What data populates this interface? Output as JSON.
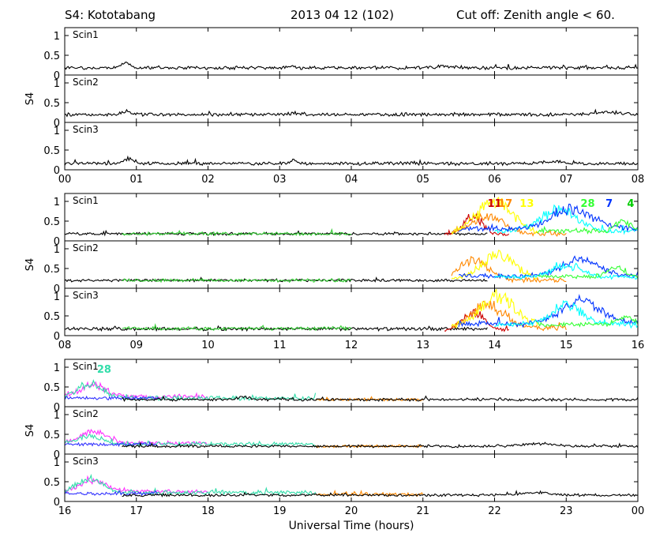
{
  "header": {
    "station": "S4: Kototabang",
    "date": "2013 04 12 (102)",
    "cutoff": "Cut off: Zenith angle < 60."
  },
  "chart_data": {
    "type": "line",
    "ylabel": "S4",
    "xlabel": "Universal Time (hours)",
    "ylim": [
      0,
      1.2
    ],
    "yticks": [
      {
        "v": 0,
        "t": "0"
      },
      {
        "v": 0.5,
        "t": "0.5"
      },
      {
        "v": 1,
        "t": "1"
      }
    ],
    "rows": [
      {
        "xlim": [
          0,
          8
        ],
        "xtick_labels": [
          "00",
          "01",
          "02",
          "03",
          "04",
          "05",
          "06",
          "07",
          "08"
        ],
        "panels": [
          {
            "label": "Scin1",
            "series": [
              {
                "color": "#000000",
                "level": 0.18,
                "noise": 0.05,
                "bumps": [
                  [
                    0.85,
                    0.1,
                    0.1
                  ],
                  [
                    3.15,
                    0.05,
                    0.06
                  ],
                  [
                    5.3,
                    0.04,
                    0.2
                  ]
                ]
              }
            ]
          },
          {
            "label": "Scin2",
            "series": [
              {
                "color": "#000000",
                "level": 0.2,
                "noise": 0.05,
                "bumps": [
                  [
                    0.85,
                    0.08,
                    0.1
                  ],
                  [
                    3.2,
                    0.04,
                    0.06
                  ],
                  [
                    7.6,
                    0.05,
                    0.3
                  ]
                ]
              }
            ]
          },
          {
            "label": "Scin3",
            "series": [
              {
                "color": "#000000",
                "level": 0.16,
                "noise": 0.05,
                "bumps": [
                  [
                    0.9,
                    0.12,
                    0.1
                  ],
                  [
                    3.2,
                    0.1,
                    0.06
                  ],
                  [
                    6.8,
                    0.04,
                    0.2
                  ]
                ]
              }
            ]
          }
        ]
      },
      {
        "xlim": [
          8,
          16
        ],
        "xtick_labels": [
          "08",
          "09",
          "10",
          "11",
          "12",
          "13",
          "14",
          "15",
          "16"
        ],
        "prn_labels": [
          {
            "text": "11",
            "color": "#cc0000",
            "x": 14.0
          },
          {
            "text": "17",
            "color": "#ff8800",
            "x": 14.15
          },
          {
            "text": "13",
            "color": "#ffff00",
            "x": 14.45
          },
          {
            "text": "28",
            "color": "#33ff33",
            "x": 15.3
          },
          {
            "text": "7",
            "color": "#0033ff",
            "x": 15.6
          },
          {
            "text": "4",
            "color": "#00cc00",
            "x": 15.9
          }
        ],
        "panels": [
          {
            "label": "Scin1",
            "series": [
              {
                "color": "#000000",
                "level": 0.18,
                "noise": 0.04,
                "range": [
                  8,
                  13.9
                ],
                "bumps": []
              },
              {
                "color": "#33cc33",
                "level": 0.18,
                "noise": 0.05,
                "range": [
                  8.8,
                  12.0
                ],
                "bumps": []
              },
              {
                "color": "#cc0000",
                "level": 0.15,
                "noise": 0.06,
                "range": [
                  13.3,
                  14.2
                ],
                "bumps": [
                  [
                    13.7,
                    0.45,
                    0.2
                  ]
                ]
              },
              {
                "color": "#ff8800",
                "level": 0.18,
                "noise": 0.06,
                "range": [
                  13.4,
                  15.0
                ],
                "bumps": [
                  [
                    13.9,
                    0.45,
                    0.3
                  ]
                ]
              },
              {
                "color": "#ffff00",
                "level": 0.2,
                "noise": 0.08,
                "range": [
                  13.4,
                  14.6
                ],
                "bumps": [
                  [
                    14.0,
                    0.8,
                    0.35
                  ]
                ]
              },
              {
                "color": "#00ffff",
                "level": 0.25,
                "noise": 0.08,
                "range": [
                  14.0,
                  16
                ],
                "bumps": [
                  [
                    14.9,
                    0.55,
                    0.35
                  ]
                ]
              },
              {
                "color": "#0033ff",
                "level": 0.3,
                "noise": 0.08,
                "range": [
                  13.5,
                  16
                ],
                "bumps": [
                  [
                    15.1,
                    0.5,
                    0.4
                  ]
                ]
              },
              {
                "color": "#33ff33",
                "level": 0.25,
                "noise": 0.07,
                "range": [
                  14.6,
                  16
                ],
                "bumps": [
                  [
                    15.8,
                    0.25,
                    0.15
                  ]
                ]
              }
            ]
          },
          {
            "label": "Scin2",
            "series": [
              {
                "color": "#000000",
                "level": 0.2,
                "noise": 0.04,
                "range": [
                  8,
                  13.9
                ],
                "bumps": []
              },
              {
                "color": "#33cc33",
                "level": 0.2,
                "noise": 0.05,
                "range": [
                  8.8,
                  12.0
                ],
                "bumps": []
              },
              {
                "color": "#ff8800",
                "level": 0.2,
                "noise": 0.07,
                "range": [
                  13.4,
                  15.0
                ],
                "bumps": [
                  [
                    13.7,
                    0.5,
                    0.3
                  ]
                ]
              },
              {
                "color": "#ffff00",
                "level": 0.22,
                "noise": 0.08,
                "range": [
                  13.4,
                  14.6
                ],
                "bumps": [
                  [
                    14.05,
                    0.6,
                    0.35
                  ]
                ]
              },
              {
                "color": "#0033ff",
                "level": 0.3,
                "noise": 0.08,
                "range": [
                  13.5,
                  16
                ],
                "bumps": [
                  [
                    15.2,
                    0.4,
                    0.4
                  ]
                ]
              },
              {
                "color": "#00ffff",
                "level": 0.28,
                "noise": 0.07,
                "range": [
                  14.0,
                  16
                ],
                "bumps": [
                  [
                    15.0,
                    0.3,
                    0.3
                  ]
                ]
              },
              {
                "color": "#33ff33",
                "level": 0.3,
                "noise": 0.07,
                "range": [
                  14.6,
                  16
                ],
                "bumps": [
                  [
                    15.7,
                    0.25,
                    0.15
                  ]
                ]
              }
            ]
          },
          {
            "label": "Scin3",
            "series": [
              {
                "color": "#000000",
                "level": 0.17,
                "noise": 0.05,
                "range": [
                  8,
                  13.9
                ],
                "bumps": []
              },
              {
                "color": "#33cc33",
                "level": 0.18,
                "noise": 0.05,
                "range": [
                  8.8,
                  12.0
                ],
                "bumps": []
              },
              {
                "color": "#cc0000",
                "level": 0.15,
                "noise": 0.06,
                "range": [
                  13.3,
                  14.2
                ],
                "bumps": [
                  [
                    13.7,
                    0.45,
                    0.2
                  ]
                ]
              },
              {
                "color": "#ff8800",
                "level": 0.2,
                "noise": 0.08,
                "range": [
                  13.4,
                  15.0
                ],
                "bumps": [
                  [
                    13.9,
                    0.6,
                    0.3
                  ]
                ]
              },
              {
                "color": "#ffff00",
                "level": 0.22,
                "noise": 0.09,
                "range": [
                  13.4,
                  14.6
                ],
                "bumps": [
                  [
                    14.05,
                    0.75,
                    0.35
                  ]
                ]
              },
              {
                "color": "#0033ff",
                "level": 0.3,
                "noise": 0.09,
                "range": [
                  13.5,
                  16
                ],
                "bumps": [
                  [
                    15.2,
                    0.55,
                    0.4
                  ]
                ]
              },
              {
                "color": "#00ffff",
                "level": 0.28,
                "noise": 0.08,
                "range": [
                  14.0,
                  16
                ],
                "bumps": [
                  [
                    15.0,
                    0.5,
                    0.3
                  ]
                ]
              },
              {
                "color": "#33ff33",
                "level": 0.28,
                "noise": 0.07,
                "range": [
                  14.6,
                  16
                ],
                "bumps": [
                  [
                    15.8,
                    0.2,
                    0.15
                  ]
                ]
              }
            ]
          }
        ]
      },
      {
        "xlim": [
          16,
          24
        ],
        "xtick_labels": [
          "16",
          "17",
          "18",
          "19",
          "20",
          "21",
          "22",
          "23",
          "00"
        ],
        "prn_labels": [
          {
            "text": "28",
            "color": "#33ddaa",
            "x": 16.55
          }
        ],
        "panels": [
          {
            "label": "Scin1",
            "series": [
              {
                "color": "#ff33ff",
                "level": 0.25,
                "noise": 0.07,
                "range": [
                  16,
                  18.0
                ],
                "bumps": [
                  [
                    16.4,
                    0.3,
                    0.25
                  ]
                ]
              },
              {
                "color": "#33ddaa",
                "level": 0.22,
                "noise": 0.07,
                "range": [
                  16,
                  19.5
                ],
                "bumps": [
                  [
                    16.35,
                    0.35,
                    0.25
                  ]
                ]
              },
              {
                "color": "#3333ff",
                "level": 0.22,
                "noise": 0.05,
                "range": [
                  16,
                  17.3
                ],
                "bumps": []
              },
              {
                "color": "#ff8800",
                "level": 0.18,
                "noise": 0.04,
                "range": [
                  19.5,
                  21.0
                ],
                "bumps": []
              },
              {
                "color": "#000000",
                "level": 0.18,
                "noise": 0.04,
                "range": [
                  16.8,
                  24
                ],
                "bumps": [
                  [
                    18.5,
                    0.08,
                    0.1
                  ]
                ]
              }
            ]
          },
          {
            "label": "Scin2",
            "series": [
              {
                "color": "#ff33ff",
                "level": 0.28,
                "noise": 0.06,
                "range": [
                  16,
                  18.0
                ],
                "bumps": [
                  [
                    16.4,
                    0.3,
                    0.25
                  ]
                ]
              },
              {
                "color": "#33ddaa",
                "level": 0.25,
                "noise": 0.06,
                "range": [
                  16,
                  19.5
                ],
                "bumps": [
                  [
                    16.35,
                    0.2,
                    0.25
                  ]
                ]
              },
              {
                "color": "#3333ff",
                "level": 0.25,
                "noise": 0.05,
                "range": [
                  16,
                  17.3
                ],
                "bumps": []
              },
              {
                "color": "#ff8800",
                "level": 0.2,
                "noise": 0.04,
                "range": [
                  19.5,
                  21.0
                ],
                "bumps": []
              },
              {
                "color": "#000000",
                "level": 0.2,
                "noise": 0.04,
                "range": [
                  16.8,
                  24
                ],
                "bumps": [
                  [
                    22.6,
                    0.06,
                    0.3
                  ]
                ]
              }
            ]
          },
          {
            "label": "Scin3",
            "series": [
              {
                "color": "#ff33ff",
                "level": 0.25,
                "noise": 0.06,
                "range": [
                  16,
                  18.0
                ],
                "bumps": [
                  [
                    16.4,
                    0.3,
                    0.25
                  ]
                ]
              },
              {
                "color": "#33ddaa",
                "level": 0.22,
                "noise": 0.07,
                "range": [
                  16,
                  19.5
                ],
                "bumps": [
                  [
                    16.35,
                    0.35,
                    0.25
                  ]
                ]
              },
              {
                "color": "#3333ff",
                "level": 0.2,
                "noise": 0.05,
                "range": [
                  16,
                  17.3
                ],
                "bumps": []
              },
              {
                "color": "#ff8800",
                "level": 0.18,
                "noise": 0.05,
                "range": [
                  19.5,
                  21.0
                ],
                "bumps": []
              },
              {
                "color": "#000000",
                "level": 0.16,
                "noise": 0.04,
                "range": [
                  16.8,
                  24
                ],
                "bumps": [
                  [
                    22.6,
                    0.06,
                    0.3
                  ]
                ]
              }
            ]
          }
        ]
      }
    ]
  }
}
